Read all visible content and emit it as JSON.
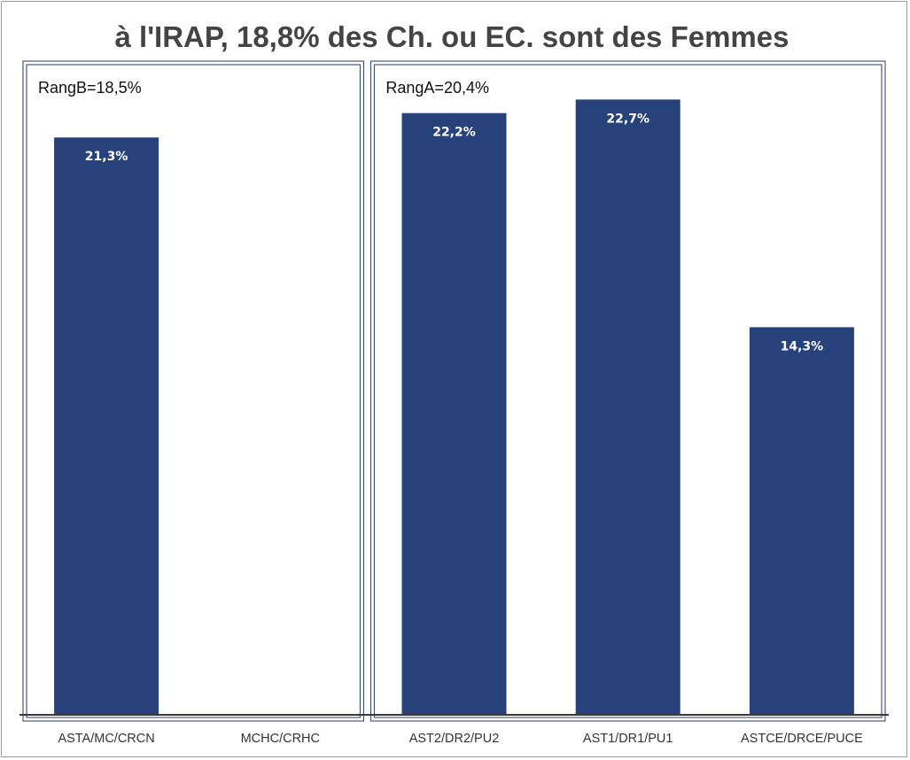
{
  "chart_data": {
    "type": "bar",
    "title": "à l'IRAP, 18,8% des Ch. ou EC. sont des Femmes",
    "xlabel": "",
    "ylabel": "",
    "ylim": [
      0,
      25
    ],
    "grid": false,
    "categories": [
      "ASTA/MC/CRCN",
      "MCHC/CRHC",
      "AST2/DR2/PU2",
      "AST1/DR1/PU1",
      "ASTCE/DRCE/PUCE"
    ],
    "values": [
      21.3,
      null,
      22.2,
      22.7,
      14.3
    ],
    "data_labels": [
      "21,3%",
      "",
      "22,2%",
      "22,7%",
      "14,3%"
    ],
    "groups": [
      {
        "label": "RangB=18,5%",
        "categories": [
          0,
          1
        ]
      },
      {
        "label": "RangA=20,4%",
        "categories": [
          2,
          3,
          4
        ]
      }
    ],
    "bar_color": "#27417a"
  }
}
